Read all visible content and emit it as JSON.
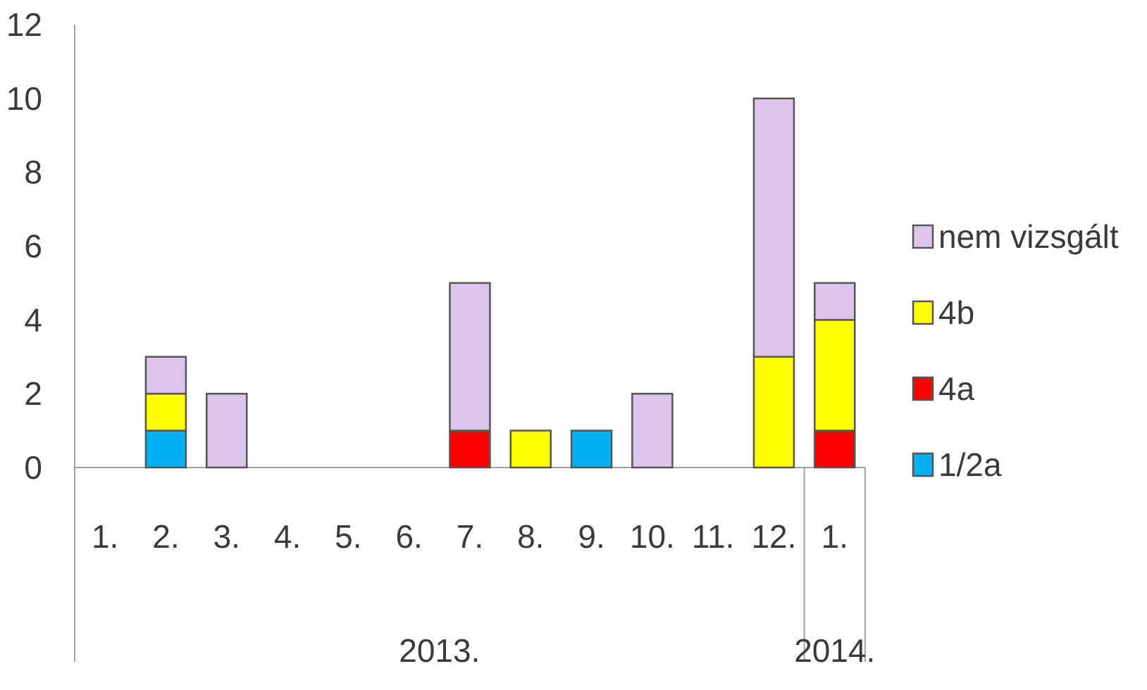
{
  "chart_data": {
    "type": "bar",
    "stacked": true,
    "categories": [
      "1.",
      "2.",
      "3.",
      "4.",
      "5.",
      "6.",
      "7.",
      "8.",
      "9.",
      "10.",
      "11.",
      "12.",
      "1."
    ],
    "groups": [
      {
        "label": "2013.",
        "start": 0,
        "end": 11
      },
      {
        "label": "2014.",
        "start": 12,
        "end": 12
      }
    ],
    "series": [
      {
        "name": "1/2a",
        "color": "#00b0f0",
        "values": [
          0,
          1,
          0,
          0,
          0,
          0,
          0,
          0,
          1,
          0,
          0,
          0,
          0
        ]
      },
      {
        "name": "4a",
        "color": "#ff0000",
        "values": [
          0,
          0,
          0,
          0,
          0,
          0,
          1,
          0,
          0,
          0,
          0,
          0,
          1
        ]
      },
      {
        "name": "4b",
        "color": "#ffff00",
        "values": [
          0,
          1,
          0,
          0,
          0,
          0,
          0,
          1,
          0,
          0,
          0,
          3,
          3
        ]
      },
      {
        "name": "nem vizsgált",
        "color": "#dcc4ec",
        "values": [
          0,
          1,
          2,
          0,
          0,
          0,
          4,
          0,
          0,
          2,
          0,
          7,
          1
        ]
      }
    ],
    "legend_order": [
      "nem vizsgált",
      "4b",
      "4a",
      "1/2a"
    ],
    "yticks": [
      "0",
      "2",
      "4",
      "6",
      "8",
      "10",
      "12"
    ],
    "ylim": [
      0,
      12
    ],
    "grid": false,
    "legend_position": "right",
    "title": "",
    "xlabel": "",
    "ylabel": ""
  }
}
